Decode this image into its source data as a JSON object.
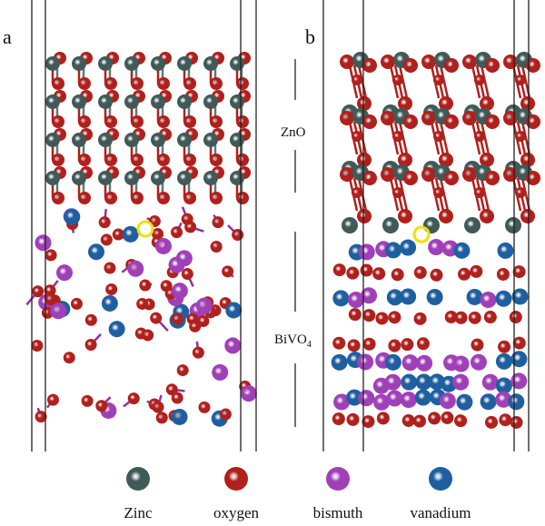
{
  "panels": {
    "a": {
      "label": "a"
    },
    "b": {
      "label": "b"
    }
  },
  "layers": {
    "top": "ZnO",
    "bottom_main": "BiVO",
    "bottom_sub": "4"
  },
  "legend": [
    {
      "name": "Zinc",
      "color": "#3f5a58"
    },
    {
      "name": "oxygen",
      "color": "#b0201c"
    },
    {
      "name": "bismuth",
      "color": "#a040b8"
    },
    {
      "name": "vanadium",
      "color": "#1f5fa0"
    }
  ],
  "highlight_color": "#f0e000"
}
